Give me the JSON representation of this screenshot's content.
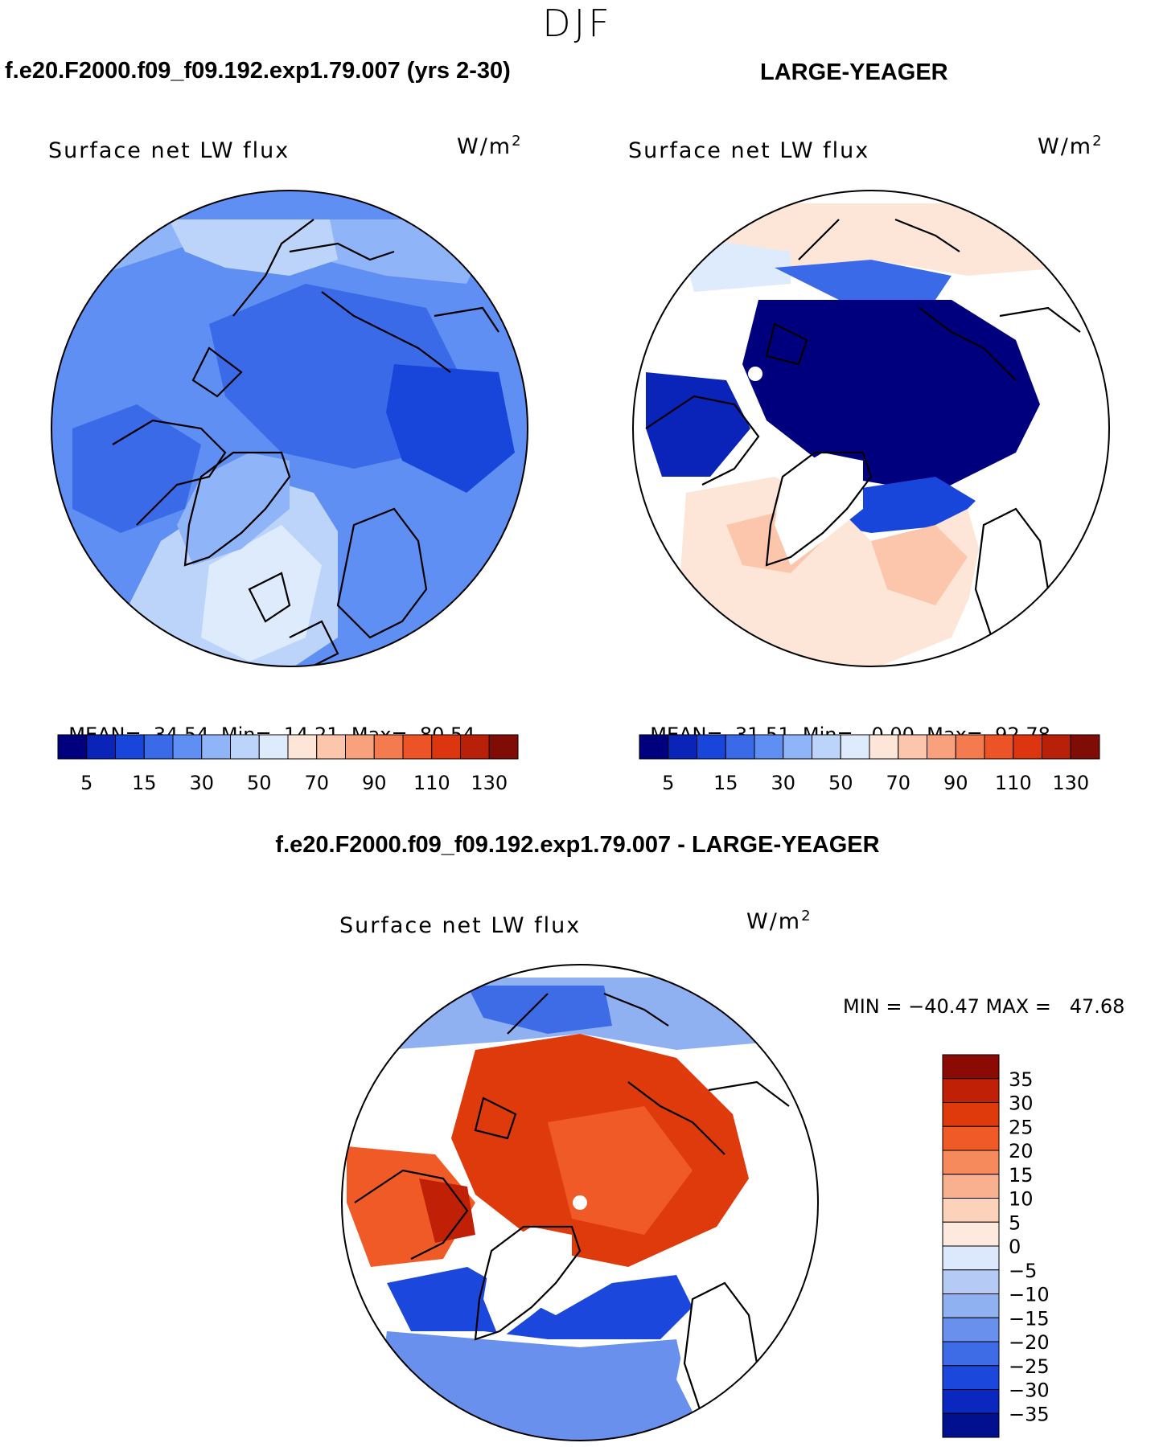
{
  "season": "DJF",
  "panels": [
    {
      "header": "f.e20.F2000.f09_f09.192.exp1.79.007 (yrs 2-30)",
      "field": "Surface net LW flux",
      "units": "W/m",
      "units_exp": "2",
      "stats": {
        "mean_label": "MEAN=",
        "mean": "34.54",
        "min_label": "Min=",
        "min": "14.21",
        "max_label": "Max=",
        "max": "80.54"
      }
    },
    {
      "header": "LARGE-YEAGER",
      "field": "Surface net LW flux",
      "units": "W/m",
      "units_exp": "2",
      "stats": {
        "mean_label": "MEAN=",
        "mean": "31.51",
        "min_label": "Min=",
        "min": "0.00",
        "max_label": "Max=",
        "max": "92.78"
      }
    }
  ],
  "abs_colorbar": {
    "colors": [
      "#00007f",
      "#0a23b8",
      "#1846da",
      "#3a6ae8",
      "#5f8ff2",
      "#8fb4f7",
      "#bcd3fa",
      "#deebfd",
      "#fde6d8",
      "#fcc6ac",
      "#f8a17c",
      "#f47a50",
      "#ec5326",
      "#dc3510",
      "#b8200a",
      "#7f0d06"
    ],
    "tick_labels": [
      "5",
      "15",
      "30",
      "50",
      "70",
      "90",
      "110",
      "130"
    ]
  },
  "diff": {
    "header": "f.e20.F2000.f09_f09.192.exp1.79.007 - LARGE-YEAGER",
    "field": "Surface net LW flux",
    "units": "W/m",
    "units_exp": "2",
    "minmax_text": "MIN = −40.47 MAX =   47.68",
    "colorbar": {
      "colors_top_to_bottom": [
        "#8b0a03",
        "#bf2006",
        "#de3a0c",
        "#ef5a26",
        "#f68a5c",
        "#f9b08e",
        "#fcd2ba",
        "#fde9de",
        "#dce8fb",
        "#b5cbf5",
        "#8fb0f1",
        "#6890ec",
        "#3e6be6",
        "#1b47dc",
        "#0a27bf",
        "#01108f"
      ],
      "tick_labels": [
        "35",
        "30",
        "25",
        "20",
        "15",
        "10",
        "5",
        "0",
        "−5",
        "−10",
        "−15",
        "−20",
        "−25",
        "−30",
        "−35"
      ]
    }
  },
  "icons": {
    "pole_marker": "pole-dot-icon"
  }
}
